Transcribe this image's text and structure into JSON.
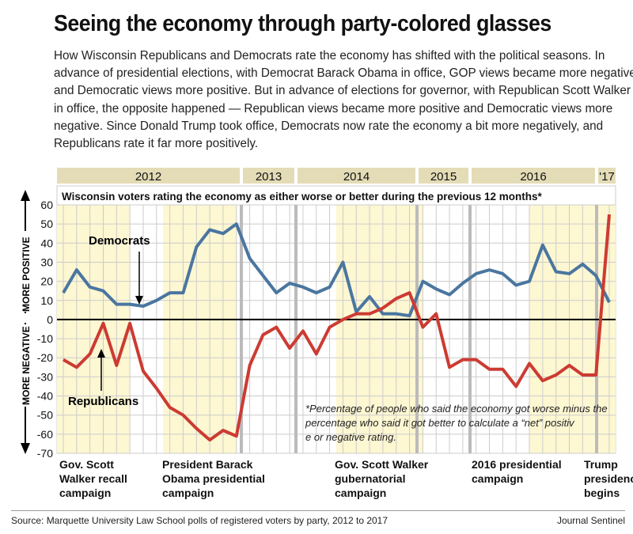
{
  "title": "Seeing the economy through party-colored glasses",
  "subtitle": "How Wisconsin Republicans and Democrats rate the economy has shifted with the political seasons. In advance of presidential elections, with Democrat Barack Obama in office, GOP views became more negative and Democratic views more positive. But in advance of elections for governor, with Republican Scott Walker in office, the opposite happened — Republican views became more positive and Democratic views more negative. Since Donald Trump took office, Democrats now rate the economy a bit more negatively, and Republicans rate it far more positively.",
  "source": "Source: Marquette University Law School polls of registered voters by party, 2012 to 2017",
  "credit": "Journal Sentinel",
  "chart_data": {
    "type": "line",
    "title": "Wisconsin voters rating the economy as either worse or better during the previous 12 months*",
    "ylabel_pos": "MORE POSITIVE",
    "ylabel_neg": "MORE NEGATIVE",
    "ylim": [
      -70,
      60
    ],
    "yticks": [
      "60",
      "50",
      "40",
      "30",
      "20",
      "10",
      "0",
      "-10",
      "-20",
      "-30",
      "-40",
      "-50",
      "-60",
      "-70"
    ],
    "years": [
      "2012",
      "2013",
      "2014",
      "2015",
      "2016",
      "'17"
    ],
    "series": [
      {
        "name": "Democrats",
        "color": "#4a76a0",
        "values": [
          14,
          26,
          17,
          15,
          8,
          8,
          7,
          10,
          14,
          14,
          38,
          47,
          45,
          50,
          32,
          23,
          14,
          19,
          17,
          14,
          17,
          30,
          4,
          12,
          3,
          3,
          2,
          20,
          16,
          13,
          19,
          24,
          26,
          24,
          18,
          20,
          39,
          25,
          24,
          29,
          23,
          9
        ]
      },
      {
        "name": "Republicans",
        "color": "#cc3b32",
        "values": [
          -21,
          -25,
          -18,
          -2,
          -24,
          -2,
          -27,
          -36,
          -46,
          -50,
          -57,
          -63,
          -58,
          -61,
          -24,
          -8,
          -4,
          -15,
          -6,
          -18,
          -4,
          0,
          3,
          3,
          6,
          11,
          14,
          -4,
          3,
          -25,
          -21,
          -21,
          -26,
          -26,
          -35,
          -23,
          -32,
          -29,
          -24,
          -29,
          -29,
          55
        ]
      }
    ],
    "periods": [
      "Gov. Scott Walker recall campaign",
      "President Barack Obama presidential campaign",
      "Gov. Scott Walker gubernatorial campaign",
      "2016 presidential campaign",
      "Trump presidency begins"
    ],
    "note": "*Percentage of people who said the economy got worse minus the percentage who said it got better to calculate a “net” positive or negative rating."
  }
}
